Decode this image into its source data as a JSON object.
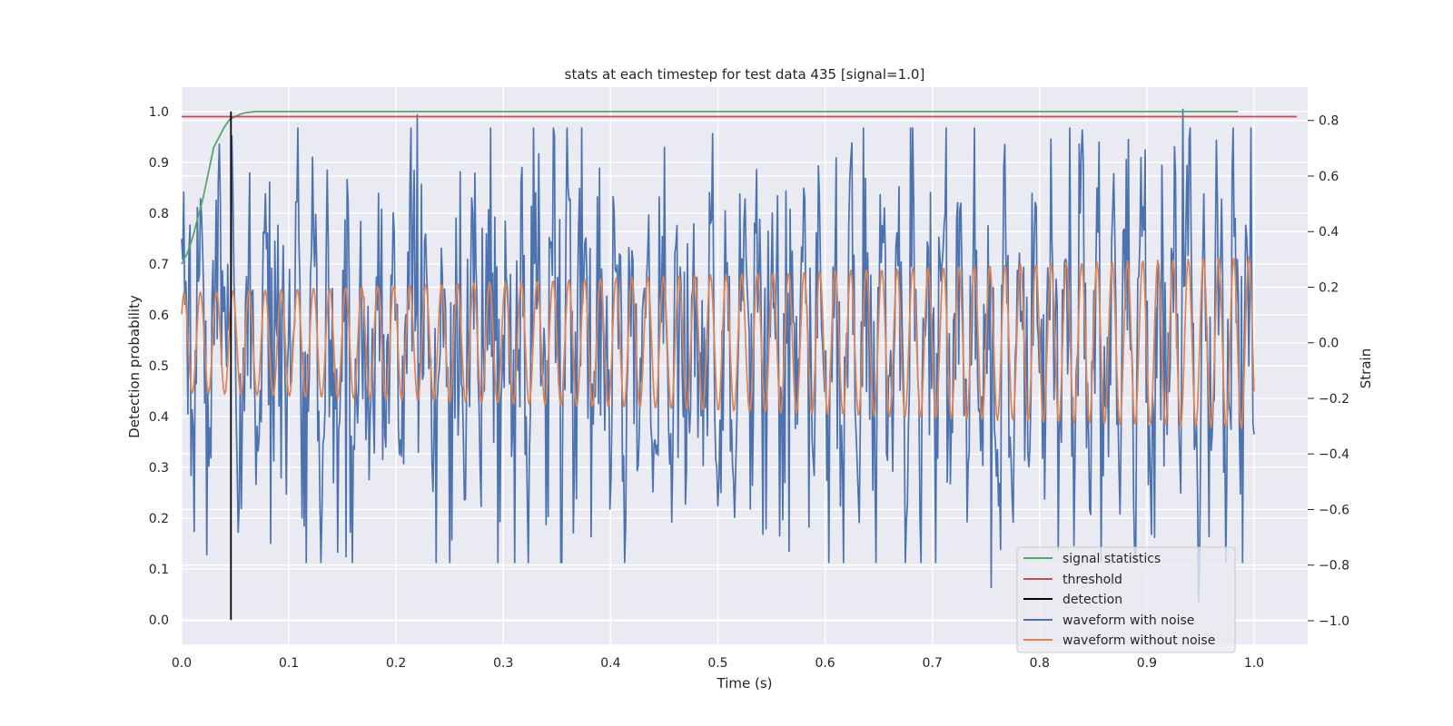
{
  "chart_data": {
    "type": "line",
    "title": "stats at each timestep for test data 435 [signal=1.0]",
    "xlabel": "Time (s)",
    "ylabel": "Detection probability",
    "y2label": "Strain",
    "xlim": [
      0.0,
      1.05
    ],
    "ylim": [
      -0.048,
      1.048
    ],
    "y2lim": [
      -1.085,
      0.92
    ],
    "grid": true,
    "legend_position": "lower-right",
    "x_ticks": [
      "0.0",
      "0.1",
      "0.2",
      "0.3",
      "0.4",
      "0.5",
      "0.6",
      "0.7",
      "0.8",
      "0.9",
      "1.0"
    ],
    "y_ticks": [
      "0.0",
      "0.1",
      "0.2",
      "0.3",
      "0.4",
      "0.5",
      "0.6",
      "0.7",
      "0.8",
      "0.9",
      "1.0"
    ],
    "y2_ticks": [
      "−1.0",
      "−0.8",
      "−0.6",
      "−0.4",
      "−0.2",
      "0.0",
      "0.2",
      "0.4",
      "0.6",
      "0.8"
    ],
    "colors": {
      "signal_statistics": "#55a868",
      "threshold": "#c44e52",
      "detection": "#000000",
      "waveform_noise": "#4c72b0",
      "waveform_clean": "#dd8452",
      "plot_bg": "#eaeaf2",
      "grid": "#ffffff"
    },
    "series": [
      {
        "name": "signal statistics",
        "axis": "left",
        "x": [
          0.0,
          0.005,
          0.01,
          0.015,
          0.02,
          0.025,
          0.03,
          0.035,
          0.04,
          0.045,
          0.05,
          0.055,
          0.06,
          0.065,
          0.07,
          0.08,
          0.1,
          0.2,
          0.4,
          0.6,
          0.8,
          0.985
        ],
        "y": [
          0.7,
          0.72,
          0.75,
          0.79,
          0.83,
          0.88,
          0.93,
          0.95,
          0.97,
          0.985,
          0.99,
          0.995,
          0.998,
          0.999,
          1.0,
          1.0,
          1.0,
          1.0,
          1.0,
          1.0,
          1.0,
          1.0
        ]
      },
      {
        "name": "threshold",
        "axis": "left",
        "x": [
          0.0,
          1.04
        ],
        "y": [
          0.99,
          0.99
        ]
      },
      {
        "name": "detection",
        "axis": "left",
        "x": [
          0.046,
          0.046
        ],
        "y": [
          0.0,
          1.0
        ]
      },
      {
        "name": "waveform with noise",
        "axis": "right",
        "x_start": 0.0,
        "x_end": 1.0,
        "amplitude_range": [
          -0.93,
          0.84
        ],
        "peaks": [
          {
            "x": 0.22,
            "y": 0.82
          },
          {
            "x": 0.934,
            "y": 0.84
          },
          {
            "x": 0.153,
            "y": -0.77
          },
          {
            "x": 0.566,
            "y": -0.75
          },
          {
            "x": 0.755,
            "y": -0.88
          },
          {
            "x": 0.948,
            "y": -0.93
          }
        ]
      },
      {
        "name": "waveform without noise",
        "axis": "right",
        "x_start": 0.0,
        "x_end": 1.0,
        "amplitude_start": 0.18,
        "amplitude_end": 0.31,
        "cycles": 66
      }
    ]
  }
}
